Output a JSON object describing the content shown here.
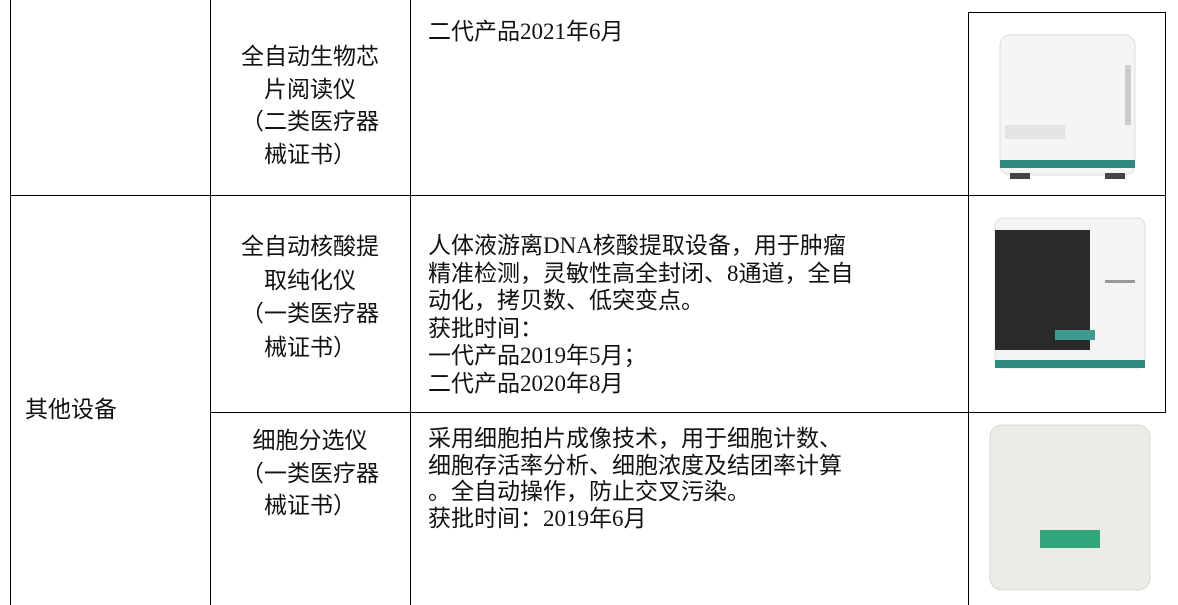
{
  "table": {
    "group": "其他设备",
    "rows": [
      {
        "name": [
          "全自动生物芯",
          "片阅读仪",
          "（二类医疗器",
          "械证书）"
        ],
        "description": [
          "二代产品2021年6月"
        ]
      },
      {
        "name": [
          "全自动核酸提",
          "取纯化仪",
          "（一类医疗器",
          "械证书）"
        ],
        "description": [
          "人体液游离DNA核酸提取设备，用于肿瘤",
          "精准检测，灵敏性高全封闭、8通道，全自",
          "动化，拷贝数、低突变点。",
          "获批时间：",
          "一代产品2019年5月；",
          "二代产品2020年8月"
        ]
      },
      {
        "name": [
          "细胞分选仪",
          "（一类医疗器",
          "械证书）"
        ],
        "description": [
          "采用细胞拍片成像技术，用于细胞计数、",
          "细胞存活率分析、细胞浓度及结团率计算",
          "。全自动操作，防止交叉污染。",
          "获批时间：2019年6月"
        ]
      }
    ]
  }
}
